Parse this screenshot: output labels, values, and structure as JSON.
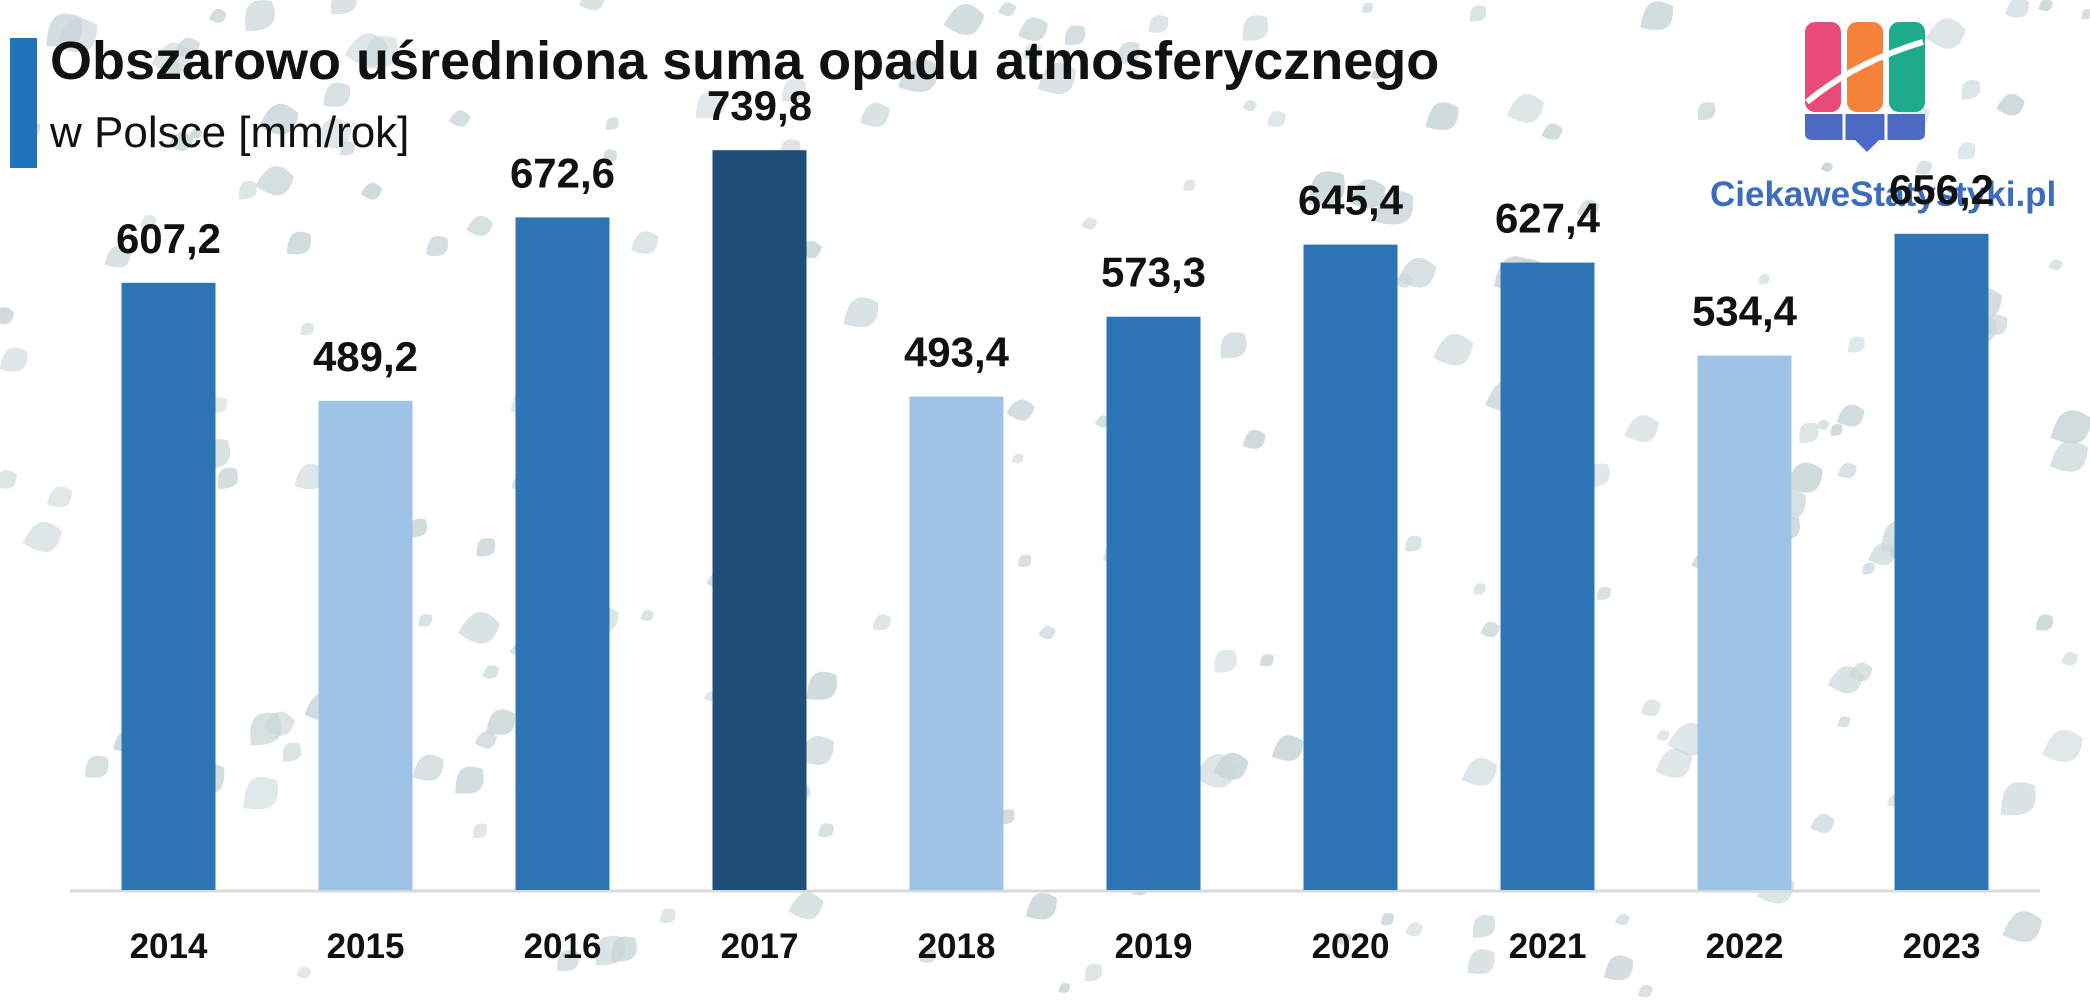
{
  "header": {
    "title": "Obszarowo uśredniona suma opadu atmosferycznego",
    "subtitle": "w Polsce [mm/rok]"
  },
  "logo": {
    "text": "CiekaweStatystyki.pl",
    "colors": [
      "#e84a7a",
      "#f5823a",
      "#1daa8d",
      "#4b6bc6"
    ]
  },
  "colors": {
    "accent": "#1f74bb",
    "bar_default": "#2e75b6",
    "bar_max": "#1f4e79",
    "bar_low": "#9dc3e6",
    "axis": "#d9d9d9"
  },
  "chart_data": {
    "type": "bar",
    "title": "Obszarowo uśredniona suma opadu atmosferycznego",
    "subtitle": "w Polsce [mm/rok]",
    "categories": [
      "2014",
      "2015",
      "2016",
      "2017",
      "2018",
      "2019",
      "2020",
      "2021",
      "2022",
      "2023"
    ],
    "values": [
      607.2,
      489.2,
      672.6,
      739.8,
      493.4,
      573.3,
      645.4,
      627.4,
      534.4,
      656.2
    ],
    "value_labels": [
      "607,2",
      "489,2",
      "672,6",
      "739,8",
      "493,4",
      "573,3",
      "645,4",
      "627,4",
      "534,4",
      "656,2"
    ],
    "bar_color_keys": [
      "bar_default",
      "bar_low",
      "bar_default",
      "bar_max",
      "bar_low",
      "bar_default",
      "bar_default",
      "bar_default",
      "bar_low",
      "bar_default"
    ],
    "ylim": [
      0,
      800
    ],
    "xlabel": "",
    "ylabel": "",
    "grid": false,
    "legend": "none"
  }
}
